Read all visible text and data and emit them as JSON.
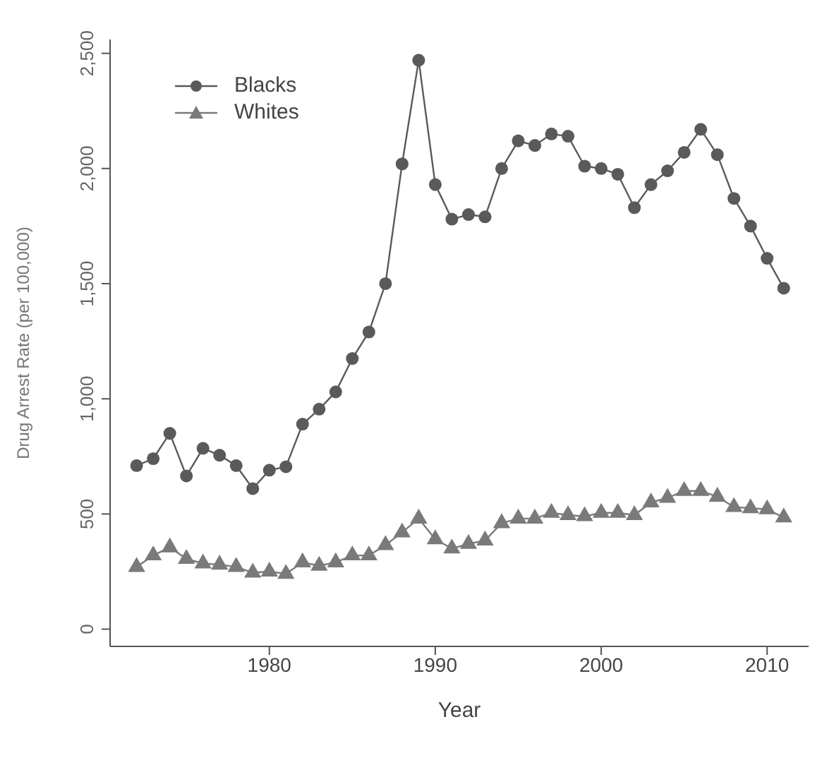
{
  "chart_data": {
    "type": "line",
    "xlabel": "Year",
    "ylabel": "Drug Arrest Rate (per 100,000)",
    "x": [
      1972,
      1973,
      1974,
      1975,
      1976,
      1977,
      1978,
      1979,
      1980,
      1981,
      1982,
      1983,
      1984,
      1985,
      1986,
      1987,
      1988,
      1989,
      1990,
      1991,
      1992,
      1993,
      1994,
      1995,
      1996,
      1997,
      1998,
      1999,
      2000,
      2001,
      2002,
      2003,
      2004,
      2005,
      2006,
      2007,
      2008,
      2009,
      2010,
      2011
    ],
    "series": [
      {
        "name": "Blacks",
        "color": "#5a5a5a",
        "marker": "circle",
        "values": [
          710,
          740,
          850,
          665,
          785,
          755,
          710,
          610,
          690,
          705,
          890,
          955,
          1030,
          1175,
          1290,
          1500,
          2020,
          2470,
          1930,
          1780,
          1800,
          1790,
          2000,
          2120,
          2100,
          2150,
          2140,
          2010,
          2000,
          1975,
          1830,
          1930,
          1990,
          2070,
          2170,
          2060,
          1870,
          1750,
          1610,
          1480
        ]
      },
      {
        "name": "Whites",
        "color": "#7a7a7a",
        "marker": "triangle",
        "values": [
          270,
          320,
          355,
          305,
          285,
          280,
          270,
          245,
          250,
          240,
          290,
          275,
          290,
          320,
          320,
          365,
          420,
          480,
          390,
          350,
          370,
          385,
          460,
          480,
          480,
          505,
          495,
          490,
          505,
          505,
          495,
          550,
          570,
          600,
          600,
          575,
          530,
          525,
          520,
          485
        ]
      }
    ],
    "xlim": [
      1970.4,
      2012.5
    ],
    "xticks": [
      1980,
      1990,
      2000,
      2010
    ],
    "ylim": [
      -75,
      2560
    ],
    "yticks": [
      {
        "value": 0,
        "label": "0"
      },
      {
        "value": 500,
        "label": "500"
      },
      {
        "value": 1000,
        "label": "1,000"
      },
      {
        "value": 1500,
        "label": "1,500"
      },
      {
        "value": 2000,
        "label": "2,000"
      },
      {
        "value": 2500,
        "label": "2,500"
      }
    ],
    "legend": "top left",
    "grid": false,
    "line_style": "solid"
  }
}
